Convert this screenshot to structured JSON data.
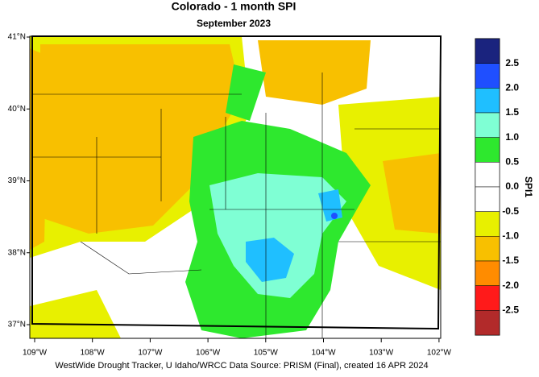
{
  "header": {
    "title": "Colorado - 1 month SPI",
    "subtitle": "September 2023"
  },
  "map": {
    "lat_labels": [
      "41°N",
      "40°N",
      "39°N",
      "38°N",
      "37°N"
    ],
    "lon_labels": [
      "109°W",
      "108°W",
      "107°W",
      "106°W",
      "105°W",
      "104°W",
      "103°W",
      "102°W"
    ]
  },
  "legend": {
    "title": "SPI1",
    "labels": [
      "2.5",
      "2.0",
      "1.5",
      "1.0",
      "0.5",
      "0.0",
      "-0.5",
      "-1.0",
      "-1.5",
      "-2.0",
      "-2.5"
    ],
    "colors": [
      "#1a237e",
      "#1f4fff",
      "#1fbfff",
      "#7fffd4",
      "#2ee82e",
      "#ffffff",
      "#ffffff",
      "#e8f000",
      "#f8c000",
      "#ff8c00",
      "#ff1a1a",
      "#b22a2a"
    ]
  },
  "footer": "WestWide Drought Tracker, U Idaho/WRCC Data Source: PRISM (Final), created 16 APR 2024"
}
